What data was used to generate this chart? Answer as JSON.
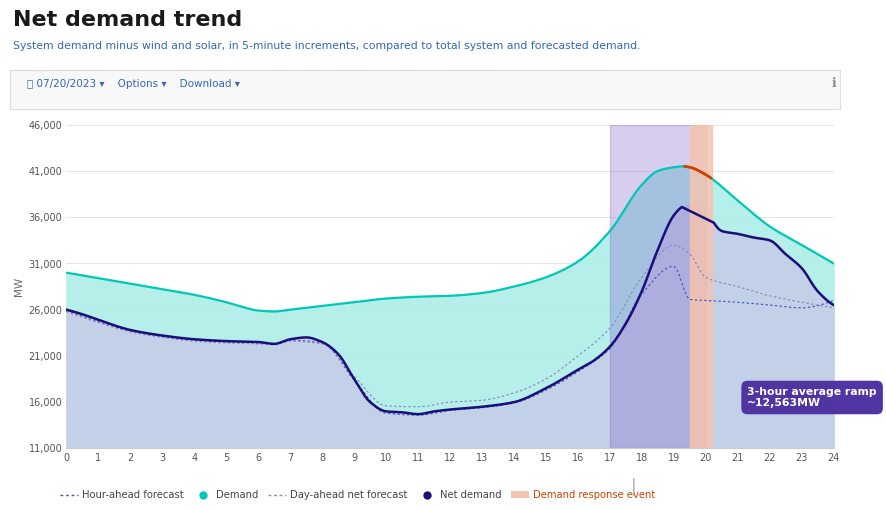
{
  "title": "Net demand trend",
  "subtitle": "System demand minus wind and solar, in 5-minute increments, compared to total system and forecasted demand.",
  "date_label": "07/20/2023",
  "ylabel": "MW",
  "xlim": [
    0,
    24
  ],
  "ylim": [
    11000,
    46000
  ],
  "yticks": [
    11000,
    16000,
    21000,
    26000,
    31000,
    36000,
    41000,
    46000
  ],
  "xticks": [
    0,
    1,
    2,
    3,
    4,
    5,
    6,
    7,
    8,
    9,
    10,
    11,
    12,
    13,
    14,
    15,
    16,
    17,
    18,
    19,
    20,
    21,
    22,
    23,
    24
  ],
  "demand_color": "#00C8B4",
  "demand_fill": "#AEEEE8",
  "net_demand_color": "#1A0F7A",
  "net_demand_fill": "#C8C8E8",
  "hour_ahead_color": "#4455BB",
  "day_ahead_color": "#8888BB",
  "demand_response_color": "#F5C4B0",
  "ramp_fill_color": "#7B5CC8",
  "annotation_bg": "#4B2FA0",
  "annotation_text": "3-hour average ramp\n~12,563MW",
  "ramp_start": 17,
  "ramp_end": 20,
  "demand_response_start": 19.5,
  "demand_response_end": 20.2,
  "orange_line_color": "#D04000",
  "x": [
    0,
    0.083,
    0.167,
    0.25,
    0.333,
    0.417,
    0.5,
    0.583,
    0.667,
    0.75,
    0.833,
    0.917,
    1,
    1.083,
    1.167,
    1.25,
    1.333,
    1.417,
    1.5,
    1.583,
    1.667,
    1.75,
    1.833,
    1.917,
    2,
    2.083,
    2.167,
    2.25,
    2.333,
    2.417,
    2.5,
    2.583,
    2.667,
    2.75,
    2.833,
    2.917,
    3,
    3.083,
    3.167,
    3.25,
    3.333,
    3.417,
    3.5,
    3.583,
    3.667,
    3.75,
    3.833,
    3.917,
    4,
    4.083,
    4.167,
    4.25,
    4.333,
    4.417,
    4.5,
    4.583,
    4.667,
    4.75,
    4.833,
    4.917,
    5,
    5.083,
    5.167,
    5.25,
    5.333,
    5.417,
    5.5,
    5.583,
    5.667,
    5.75,
    5.833,
    5.917,
    6,
    6.083,
    6.167,
    6.25,
    6.333,
    6.417,
    6.5,
    6.583,
    6.667,
    6.75,
    6.833,
    6.917,
    7,
    7.083,
    7.167,
    7.25,
    7.333,
    7.417,
    7.5,
    7.583,
    7.667,
    7.75,
    7.833,
    7.917,
    8,
    8.083,
    8.167,
    8.25,
    8.333,
    8.417,
    8.5,
    8.583,
    8.667,
    8.75,
    8.833,
    8.917,
    9,
    9.083,
    9.167,
    9.25,
    9.333,
    9.417,
    9.5,
    9.583,
    9.667,
    9.75,
    9.833,
    9.917,
    10,
    10.083,
    10.167,
    10.25,
    10.333,
    10.417,
    10.5,
    10.583,
    10.667,
    10.75,
    10.833,
    10.917,
    11,
    11.083,
    11.167,
    11.25,
    11.333,
    11.417,
    11.5,
    11.583,
    11.667,
    11.75,
    11.833,
    11.917,
    12,
    12.083,
    12.167,
    12.25,
    12.333,
    12.417,
    12.5,
    12.583,
    12.667,
    12.75,
    12.833,
    12.917,
    13,
    13.083,
    13.167,
    13.25,
    13.333,
    13.417,
    13.5,
    13.583,
    13.667,
    13.75,
    13.833,
    13.917,
    14,
    14.083,
    14.167,
    14.25,
    14.333,
    14.417,
    14.5,
    14.583,
    14.667,
    14.75,
    14.833,
    14.917,
    15,
    15.083,
    15.167,
    15.25,
    15.333,
    15.417,
    15.5,
    15.583,
    15.667,
    15.75,
    15.833,
    15.917,
    16,
    16.083,
    16.167,
    16.25,
    16.333,
    16.417,
    16.5,
    16.583,
    16.667,
    16.75,
    16.833,
    16.917,
    17,
    17.083,
    17.167,
    17.25,
    17.333,
    17.417,
    17.5,
    17.583,
    17.667,
    17.75,
    17.833,
    17.917,
    18,
    18.083,
    18.167,
    18.25,
    18.333,
    18.417,
    18.5,
    18.583,
    18.667,
    18.75,
    18.833,
    18.917,
    19,
    19.083,
    19.167,
    19.25,
    19.333,
    19.417,
    19.5,
    19.583,
    19.667,
    19.75,
    19.833,
    19.917,
    20,
    20.083,
    20.167,
    20.25,
    20.333,
    20.417,
    20.5,
    20.583,
    20.667,
    20.75,
    20.833,
    20.917,
    21,
    21.083,
    21.167,
    21.25,
    21.333,
    21.417,
    21.5,
    21.583,
    21.667,
    21.75,
    21.833,
    21.917,
    22,
    22.083,
    22.167,
    22.25,
    22.333,
    22.417,
    22.5,
    22.583,
    22.667,
    22.75,
    22.833,
    22.917,
    23,
    23.083,
    23.167,
    23.25,
    23.333,
    23.417,
    23.5,
    23.583,
    23.667,
    23.75,
    23.833,
    23.917,
    24
  ]
}
